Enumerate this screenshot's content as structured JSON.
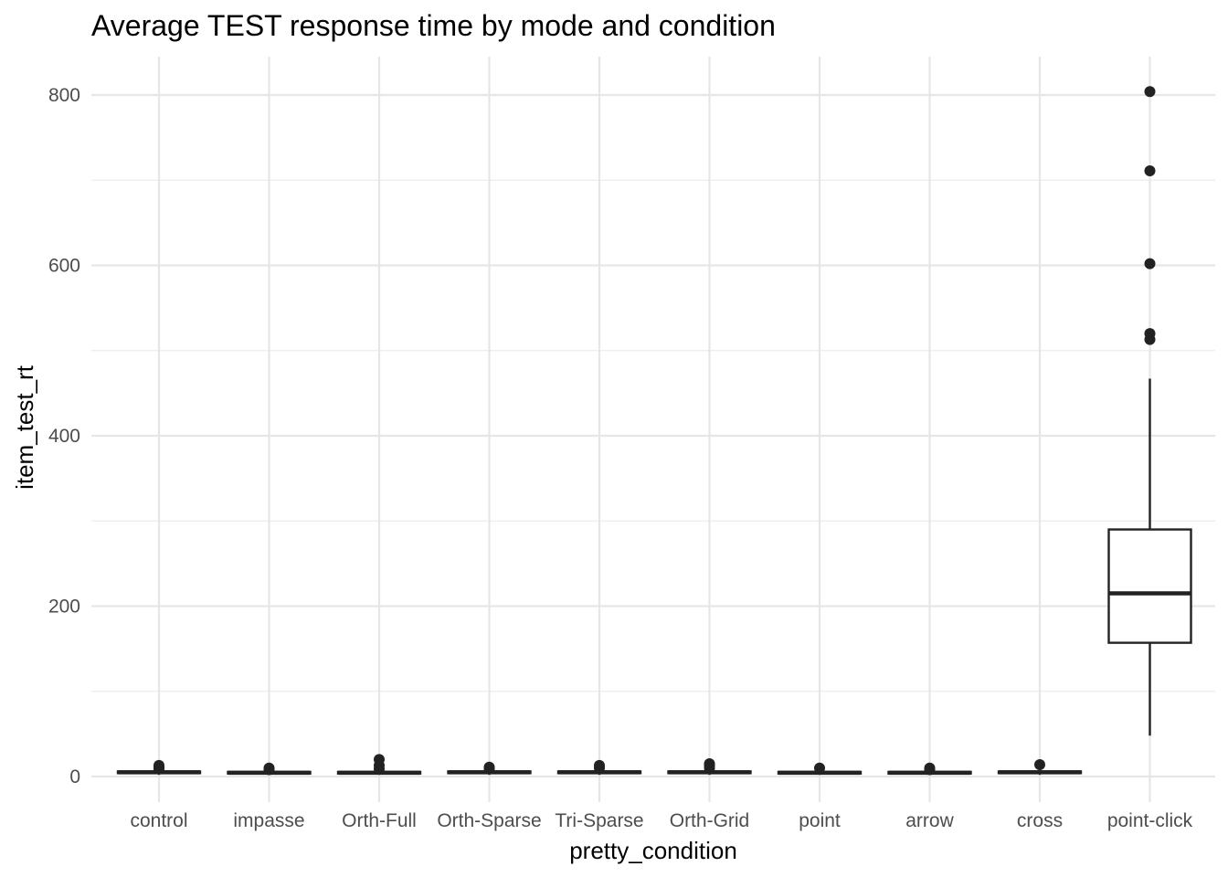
{
  "chart_data": {
    "type": "box",
    "title": "Average TEST response time by mode and condition",
    "xlabel": "pretty_condition",
    "ylabel": "item_test_rt",
    "ylim": [
      -30,
      845
    ],
    "y_ticks": [
      0,
      200,
      400,
      600,
      800
    ],
    "y_tick_labels": [
      "0",
      "200",
      "400",
      "600",
      "800"
    ],
    "y_minor_ticks": [
      100,
      300,
      500,
      700
    ],
    "grid": true,
    "legend": "none",
    "categories": [
      "control",
      "impasse",
      "Orth-Full",
      "Orth-Sparse",
      "Tri-Sparse",
      "Orth-Grid",
      "point",
      "arrow",
      "cross",
      "point-click"
    ],
    "boxes": [
      {
        "category": "control",
        "min": 2,
        "q1": 4,
        "median": 5,
        "q3": 6,
        "max": 8,
        "outliers": [
          9,
          11,
          13
        ]
      },
      {
        "category": "impasse",
        "min": 2,
        "q1": 3.5,
        "median": 4.5,
        "q3": 5.5,
        "max": 7,
        "outliers": [
          8,
          10
        ]
      },
      {
        "category": "Orth-Full",
        "min": 2,
        "q1": 3.5,
        "median": 4.5,
        "q3": 5.5,
        "max": 7,
        "outliers": [
          9,
          13,
          20
        ]
      },
      {
        "category": "Orth-Sparse",
        "min": 2,
        "q1": 4,
        "median": 5,
        "q3": 6,
        "max": 7.5,
        "outliers": [
          9,
          11
        ]
      },
      {
        "category": "Tri-Sparse",
        "min": 2,
        "q1": 4,
        "median": 5,
        "q3": 6,
        "max": 8,
        "outliers": [
          10,
          13
        ]
      },
      {
        "category": "Orth-Grid",
        "min": 2,
        "q1": 4,
        "median": 5,
        "q3": 6,
        "max": 8,
        "outliers": [
          10,
          13,
          15
        ]
      },
      {
        "category": "point",
        "min": 2,
        "q1": 3.5,
        "median": 4.5,
        "q3": 5.5,
        "max": 7,
        "outliers": [
          10
        ]
      },
      {
        "category": "arrow",
        "min": 2,
        "q1": 3.5,
        "median": 4.5,
        "q3": 5.5,
        "max": 7,
        "outliers": [
          8,
          10
        ]
      },
      {
        "category": "cross",
        "min": 2,
        "q1": 4,
        "median": 5,
        "q3": 6,
        "max": 8,
        "outliers": [
          14
        ]
      },
      {
        "category": "point-click",
        "min": 48,
        "q1": 157,
        "median": 215,
        "q3": 290,
        "max": 467,
        "outliers": [
          513,
          520,
          602,
          711,
          804
        ]
      }
    ]
  },
  "colors": {
    "background": "#ffffff",
    "grid": "#e6e6e6",
    "box_stroke": "#222222",
    "box_fill": "#ffffff",
    "tick_text": "#4d4d4d"
  }
}
